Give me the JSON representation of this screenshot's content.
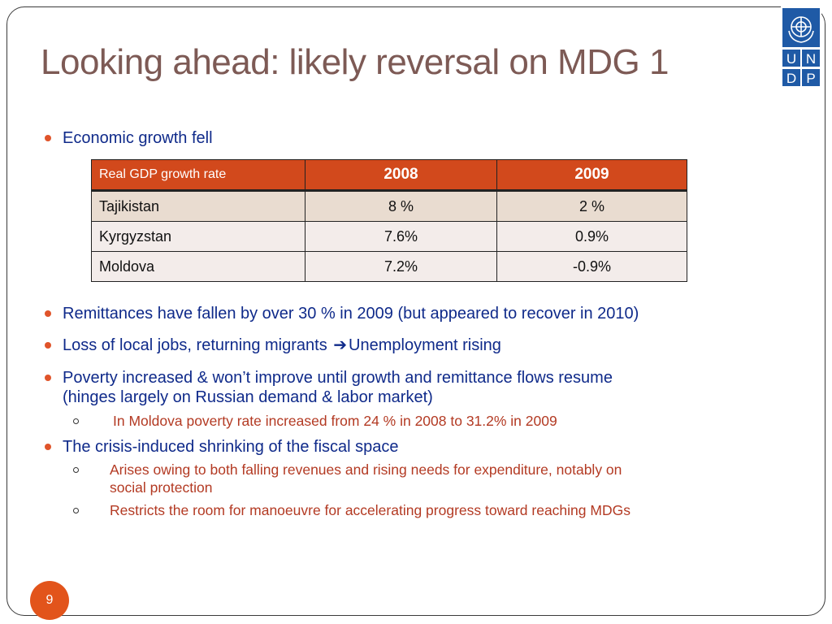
{
  "slide": {
    "title": "Looking ahead: likely reversal on MDG 1",
    "page_number": "9"
  },
  "logo": {
    "letters": [
      "U",
      "N",
      "D",
      "P"
    ],
    "color": "#1f5aa6"
  },
  "bullets": {
    "b1": "Economic growth fell",
    "b2": "Remittances have fallen by over 30 % in 2009 (but appeared to recover  in 2010)",
    "b3_before": "Loss of local jobs, returning migrants ",
    "b3_after": "Unemployment rising",
    "b4_line1": "Poverty increased & won’t improve until growth and remittance flows resume",
    "b4_line2": "(hinges largely on Russian demand & labor market)",
    "b4_sub1": "In Moldova poverty rate increased from 24 % in 2008 to 31.2% in 2009",
    "b5": "The crisis-induced shrinking of the fiscal space",
    "b5_sub1_line1": "Arises owing to both falling revenues and rising needs for expenditure, notably on",
    "b5_sub1_line2": "social protection",
    "b5_sub2": "Restricts the room for manoeuvre for accelerating progress toward reaching MDGs"
  },
  "table": {
    "headers": [
      "Real GDP growth rate",
      "2008",
      "2009"
    ],
    "rows": [
      [
        "Tajikistan",
        "8 %",
        "2 %"
      ],
      [
        "Kyrgyzstan",
        "7.6%",
        "0.9%"
      ],
      [
        "Moldova",
        "7.2%",
        "-0.9%"
      ]
    ]
  },
  "colors": {
    "title": "#7d5a55",
    "bullet_text": "#0f2a8a",
    "sub_text": "#b33a23",
    "accent": "#d2491c"
  }
}
